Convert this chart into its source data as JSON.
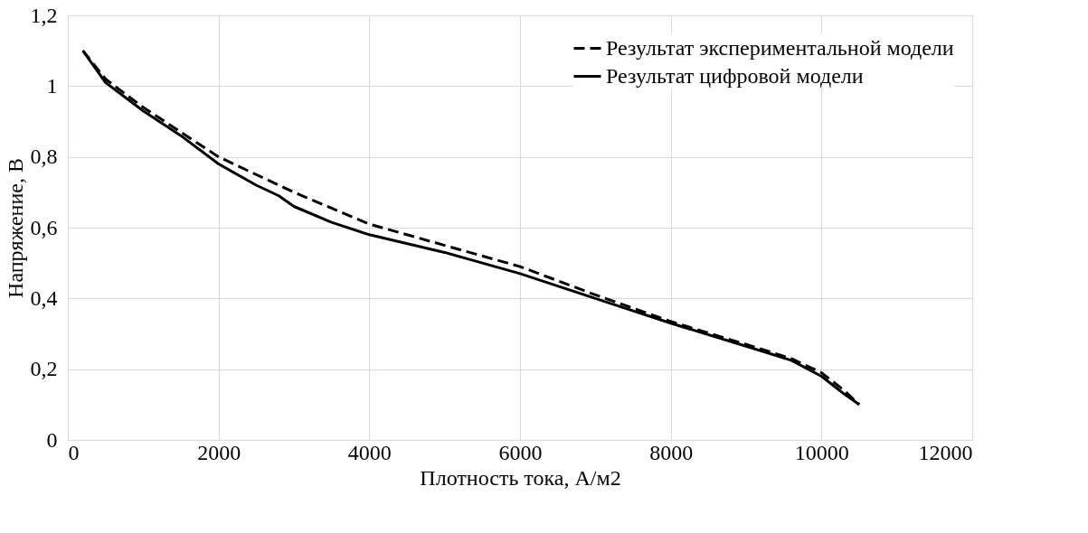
{
  "chart_data": {
    "type": "line",
    "xlabel": "Плотность тока, А/м2",
    "ylabel": "Напряжение, В",
    "xlim": [
      0,
      12000
    ],
    "xticks": [
      0,
      2000,
      4000,
      6000,
      8000,
      10000,
      12000
    ],
    "ylim": [
      0,
      1.2
    ],
    "yticks": [
      0,
      {
        "value": 0.2,
        "label": "0,2"
      },
      {
        "value": 0.4,
        "label": "0,4"
      },
      {
        "value": 0.6,
        "label": "0,6"
      },
      {
        "value": 0.8,
        "label": "0,8"
      },
      1,
      {
        "value": 1.2,
        "label": "1,2"
      }
    ],
    "grid": true,
    "legend": "top right",
    "marker": "none",
    "series": [
      {
        "name": "Результат экспериментальной модели",
        "color": "#000000",
        "line_style": "dashed",
        "x": [
          200,
          500,
          1000,
          1500,
          2000,
          2500,
          3000,
          3500,
          4000,
          5000,
          6000,
          7000,
          8000,
          9000,
          9600,
          10000,
          10300,
          10500
        ],
        "values": [
          1.1,
          1.02,
          0.94,
          0.87,
          0.8,
          0.75,
          0.7,
          0.655,
          0.61,
          0.55,
          0.49,
          0.41,
          0.335,
          0.27,
          0.23,
          0.19,
          0.14,
          0.1
        ]
      },
      {
        "name": "Результат цифровой модели",
        "color": "#000000",
        "line_style": "solid",
        "x": [
          200,
          500,
          1000,
          1500,
          2000,
          2500,
          2800,
          3000,
          3500,
          4000,
          5000,
          6000,
          7000,
          8000,
          9000,
          9600,
          10000,
          10300,
          10500
        ],
        "values": [
          1.1,
          1.01,
          0.93,
          0.86,
          0.78,
          0.72,
          0.69,
          0.66,
          0.615,
          0.58,
          0.53,
          0.47,
          0.4,
          0.33,
          0.265,
          0.225,
          0.18,
          0.13,
          0.1
        ]
      }
    ]
  }
}
